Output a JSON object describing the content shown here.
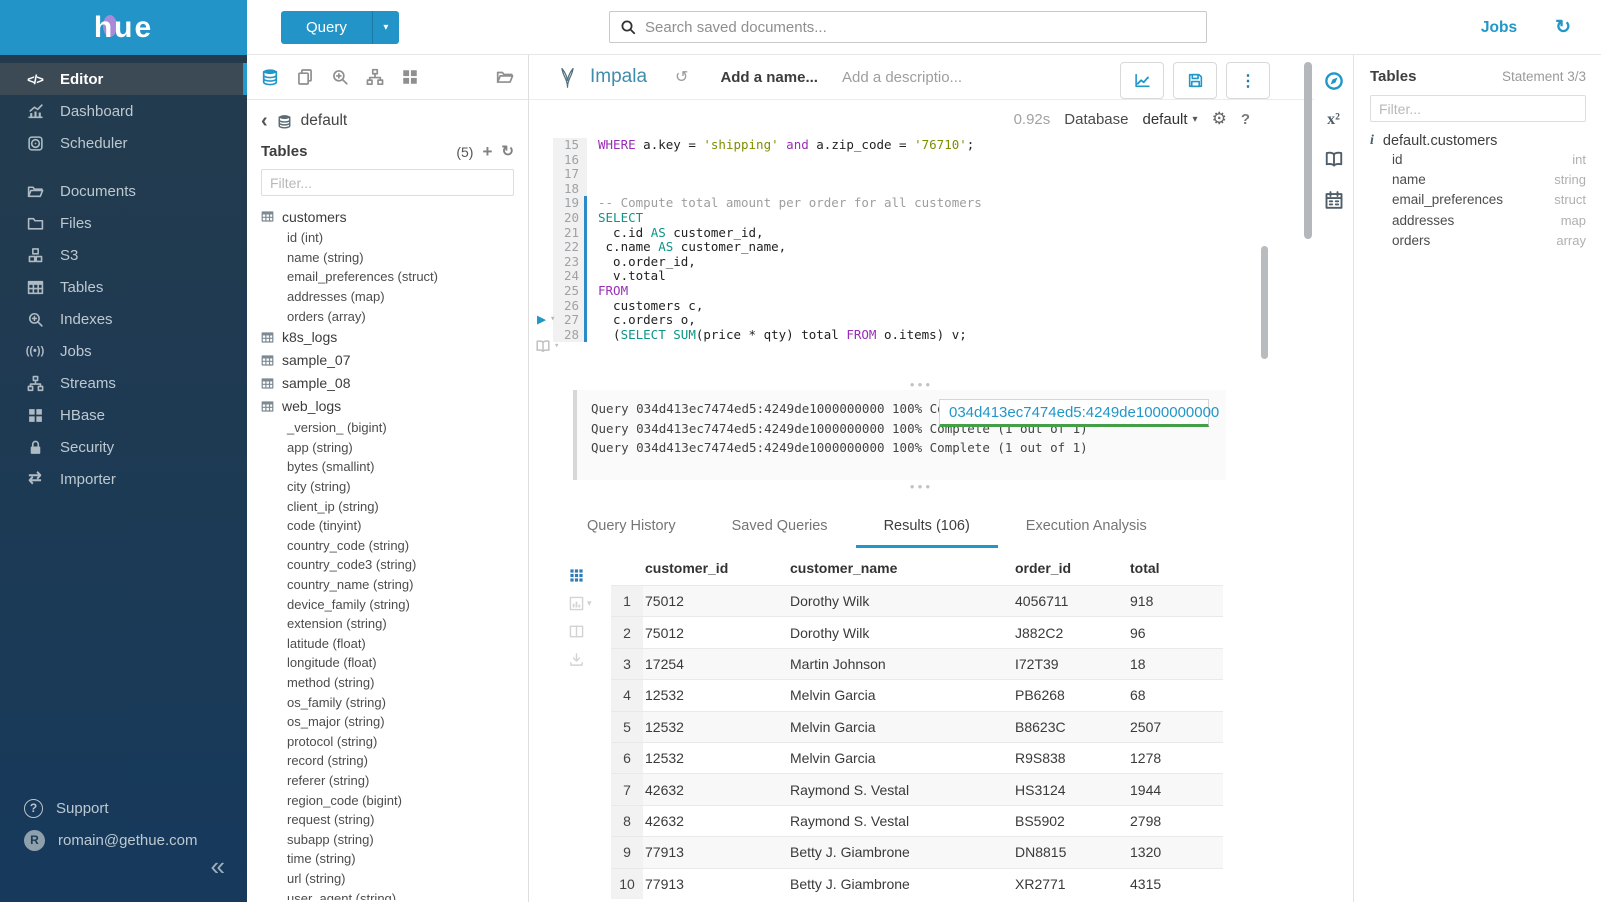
{
  "colors": {
    "brand": "#2294c8",
    "accent": "#2196c9",
    "statement_marker": "#2b8bc9",
    "popover_underline": "#43a047"
  },
  "brand": {
    "name": "hue"
  },
  "topbar": {
    "query_label": "Query",
    "search_placeholder": "Search saved documents...",
    "jobs_label": "Jobs"
  },
  "sidebar": {
    "items": [
      {
        "label": "Editor",
        "icon": "code",
        "active": true,
        "group_break": false
      },
      {
        "label": "Dashboard",
        "icon": "dashboard",
        "active": false,
        "group_break": false
      },
      {
        "label": "Scheduler",
        "icon": "scheduler",
        "active": false,
        "group_break": false
      },
      {
        "label": "Documents",
        "icon": "documents",
        "active": false,
        "group_break": true
      },
      {
        "label": "Files",
        "icon": "files",
        "active": false,
        "group_break": false
      },
      {
        "label": "S3",
        "icon": "s3",
        "active": false,
        "group_break": false
      },
      {
        "label": "Tables",
        "icon": "tables",
        "active": false,
        "group_break": false
      },
      {
        "label": "Indexes",
        "icon": "indexes",
        "active": false,
        "group_break": false
      },
      {
        "label": "Jobs",
        "icon": "jobs",
        "active": false,
        "group_break": false
      },
      {
        "label": "Streams",
        "icon": "streams",
        "active": false,
        "group_break": false
      },
      {
        "label": "HBase",
        "icon": "hbase",
        "active": false,
        "group_break": false
      },
      {
        "label": "Security",
        "icon": "security",
        "active": false,
        "group_break": false
      },
      {
        "label": "Importer",
        "icon": "importer",
        "active": false,
        "group_break": false
      }
    ],
    "support_label": "Support",
    "account": "romain@gethue.com"
  },
  "left_panel": {
    "toolbar_icons": [
      "database",
      "copy",
      "zoom-plus",
      "sitemap",
      "grid4",
      "folder"
    ],
    "database": "default",
    "tables_label": "Tables",
    "count": "(5)",
    "filter_placeholder": "Filter...",
    "tree": [
      {
        "name": "customers",
        "columns": [
          "id (int)",
          "name (string)",
          "email_preferences (struct)",
          "addresses (map)",
          "orders (array)"
        ]
      },
      {
        "name": "k8s_logs",
        "columns": []
      },
      {
        "name": "sample_07",
        "columns": []
      },
      {
        "name": "sample_08",
        "columns": []
      },
      {
        "name": "web_logs",
        "columns": [
          "_version_ (bigint)",
          "app (string)",
          "bytes (smallint)",
          "city (string)",
          "client_ip (string)",
          "code (tinyint)",
          "country_code (string)",
          "country_code3 (string)",
          "country_name (string)",
          "device_family (string)",
          "extension (string)",
          "latitude (float)",
          "longitude (float)",
          "method (string)",
          "os_family (string)",
          "os_major (string)",
          "protocol (string)",
          "record (string)",
          "referer (string)",
          "region_code (bigint)",
          "request (string)",
          "subapp (string)",
          "time (string)",
          "url (string)",
          "user_agent (string)"
        ]
      }
    ]
  },
  "editor": {
    "engine": "Impala",
    "name_placeholder": "Add a name...",
    "description_placeholder": "Add a descriptio...",
    "exec_time": "0.92s",
    "database_label": "Database",
    "database_value": "default",
    "code_lines": [
      {
        "n": 15,
        "stmt": false,
        "segs": [
          [
            "WHERE",
            "k"
          ],
          [
            " a.key = ",
            "d"
          ],
          [
            "'shipping'",
            "s"
          ],
          [
            " ",
            "d"
          ],
          [
            "and",
            "k"
          ],
          [
            " a.zip_code = ",
            "d"
          ],
          [
            "'76710'",
            "s"
          ],
          [
            ";",
            "d"
          ]
        ]
      },
      {
        "n": 16,
        "stmt": false,
        "segs": []
      },
      {
        "n": 17,
        "stmt": false,
        "segs": []
      },
      {
        "n": 18,
        "stmt": false,
        "segs": []
      },
      {
        "n": 19,
        "stmt": true,
        "segs": [
          [
            "-- Compute total amount per order for all customers",
            "c"
          ]
        ]
      },
      {
        "n": 20,
        "stmt": true,
        "segs": [
          [
            "SELECT",
            "t"
          ]
        ]
      },
      {
        "n": 21,
        "stmt": true,
        "segs": [
          [
            "  c.id ",
            "d"
          ],
          [
            "AS",
            "t"
          ],
          [
            " customer_id,",
            "d"
          ]
        ]
      },
      {
        "n": 22,
        "stmt": true,
        "segs": [
          [
            " c.name ",
            "d"
          ],
          [
            "AS",
            "t"
          ],
          [
            " customer_name,",
            "d"
          ]
        ]
      },
      {
        "n": 23,
        "stmt": true,
        "segs": [
          [
            "  o.order_id,",
            "d"
          ]
        ]
      },
      {
        "n": 24,
        "stmt": true,
        "segs": [
          [
            "  v.total",
            "d"
          ]
        ]
      },
      {
        "n": 25,
        "stmt": true,
        "segs": [
          [
            "FROM",
            "k"
          ]
        ]
      },
      {
        "n": 26,
        "stmt": true,
        "segs": [
          [
            "  customers c,",
            "d"
          ]
        ]
      },
      {
        "n": 27,
        "stmt": true,
        "segs": [
          [
            "  c.orders o,",
            "d"
          ]
        ]
      },
      {
        "n": 28,
        "stmt": true,
        "segs": [
          [
            "  (",
            "d"
          ],
          [
            "SELECT",
            "t"
          ],
          [
            " ",
            "d"
          ],
          [
            "SUM",
            "t"
          ],
          [
            "(price * qty) total ",
            "d"
          ],
          [
            "FROM",
            "k"
          ],
          [
            " o.items) v;",
            "d"
          ]
        ]
      }
    ],
    "log_lines": [
      "Query 034d413ec7474ed5:4249de1000000000 100% Complete (1 out of 1)",
      "Query 034d413ec7474ed5:4249de1000000000 100% Complete (1 out of 1)",
      "Query 034d413ec7474ed5:4249de1000000000 100% Complete (1 out of 1)"
    ],
    "popover_text": "034d413ec7474ed5:4249de1000000000"
  },
  "tabs": [
    {
      "label": "Query History",
      "active": false
    },
    {
      "label": "Saved Queries",
      "active": false
    },
    {
      "label": "Results (106)",
      "active": true
    },
    {
      "label": "Execution Analysis",
      "active": false
    }
  ],
  "results": {
    "rail_icons": [
      "grid9",
      "chart-bar",
      "column-split",
      "download"
    ],
    "columns": [
      "customer_id",
      "customer_name",
      "order_id",
      "total"
    ],
    "rows": [
      [
        "1",
        "75012",
        "Dorothy Wilk",
        "4056711",
        "918"
      ],
      [
        "2",
        "75012",
        "Dorothy Wilk",
        "J882C2",
        "96"
      ],
      [
        "3",
        "17254",
        "Martin Johnson",
        "I72T39",
        "18"
      ],
      [
        "4",
        "12532",
        "Melvin Garcia",
        "PB6268",
        "68"
      ],
      [
        "5",
        "12532",
        "Melvin Garcia",
        "B8623C",
        "2507"
      ],
      [
        "6",
        "12532",
        "Melvin Garcia",
        "R9S838",
        "1278"
      ],
      [
        "7",
        "42632",
        "Raymond S. Vestal",
        "HS3124",
        "1944"
      ],
      [
        "8",
        "42632",
        "Raymond S. Vestal",
        "BS5902",
        "2798"
      ],
      [
        "9",
        "77913",
        "Betty J. Giambrone",
        "DN8815",
        "1320"
      ],
      [
        "10",
        "77913",
        "Betty J. Giambrone",
        "XR2771",
        "4315"
      ]
    ]
  },
  "right_panel": {
    "rail_icons": [
      "compass",
      "superscript",
      "open-book",
      "calendar"
    ],
    "title": "Tables",
    "statement": "Statement 3/3",
    "filter_placeholder": "Filter...",
    "table_name": "default.customers",
    "columns": [
      {
        "name": "id",
        "type": "int"
      },
      {
        "name": "name",
        "type": "string"
      },
      {
        "name": "email_preferences",
        "type": "struct"
      },
      {
        "name": "addresses",
        "type": "map"
      },
      {
        "name": "orders",
        "type": "array"
      }
    ]
  }
}
